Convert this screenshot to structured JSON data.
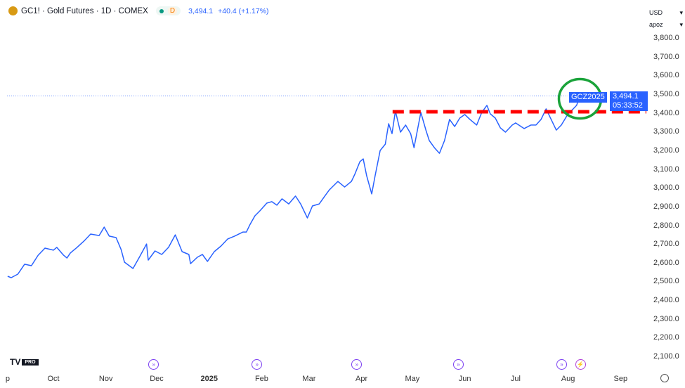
{
  "header": {
    "symbol": "GC1!",
    "title": "GC1! · Gold Futures · 1D · COMEX",
    "status_letter": "D",
    "last": "3,494.1",
    "change": "+40.4 (+1.17%)"
  },
  "currency": "USD",
  "scale_mode": "apoz",
  "price_label": {
    "symbol": "GCZ2025",
    "price": "3,494.1",
    "countdown": "05:33:52"
  },
  "branding": {
    "logo": "TV",
    "badge": "PRO"
  },
  "colors": {
    "line": "#2962ff",
    "annotation_line": "#ff0000",
    "annotation_circle": "#1aa33a"
  },
  "chart_data": {
    "type": "line",
    "title": "GC1! · Gold Futures · 1D · COMEX",
    "x_unit": "days since 2024-10-01",
    "ylim": [
      2100,
      3800
    ],
    "y_ticks": [
      "3,800.0",
      "3,700.0",
      "3,600.0",
      "3,500.0",
      "3,400.0",
      "3,300.0",
      "3,200.0",
      "3,100.0",
      "3,000.0",
      "2,900.0",
      "2,800.0",
      "2,700.0",
      "2,600.0",
      "2,500.0",
      "2,400.0",
      "2,300.0",
      "2,200.0",
      "2,100.0"
    ],
    "y_tick_values": [
      3800,
      3700,
      3600,
      3500,
      3400,
      3300,
      3200,
      3100,
      3000,
      2900,
      2800,
      2700,
      2600,
      2500,
      2400,
      2300,
      2200,
      2100
    ],
    "x_ticks": [
      {
        "label": "p",
        "day": -27
      },
      {
        "label": "Oct",
        "day": 0
      },
      {
        "label": "Nov",
        "day": 31
      },
      {
        "label": "Dec",
        "day": 61
      },
      {
        "label": "2025",
        "day": 92
      },
      {
        "label": "Feb",
        "day": 123
      },
      {
        "label": "Mar",
        "day": 151
      },
      {
        "label": "Apr",
        "day": 182
      },
      {
        "label": "May",
        "day": 212
      },
      {
        "label": "Jun",
        "day": 243
      },
      {
        "label": "Jul",
        "day": 273
      },
      {
        "label": "Aug",
        "day": 304
      },
      {
        "label": "Sep",
        "day": 335
      }
    ],
    "points": [
      [
        -27,
        2532
      ],
      [
        -25,
        2524
      ],
      [
        -21,
        2543
      ],
      [
        -17,
        2596
      ],
      [
        -13,
        2588
      ],
      [
        -9,
        2644
      ],
      [
        -5,
        2682
      ],
      [
        0,
        2671
      ],
      [
        2,
        2686
      ],
      [
        6,
        2644
      ],
      [
        8,
        2629
      ],
      [
        10,
        2656
      ],
      [
        14,
        2686
      ],
      [
        18,
        2719
      ],
      [
        22,
        2757
      ],
      [
        27,
        2749
      ],
      [
        30,
        2794
      ],
      [
        33,
        2746
      ],
      [
        37,
        2738
      ],
      [
        40,
        2674
      ],
      [
        42,
        2607
      ],
      [
        47,
        2573
      ],
      [
        51,
        2637
      ],
      [
        55,
        2704
      ],
      [
        56,
        2618
      ],
      [
        60,
        2667
      ],
      [
        64,
        2648
      ],
      [
        68,
        2686
      ],
      [
        72,
        2753
      ],
      [
        76,
        2663
      ],
      [
        80,
        2648
      ],
      [
        81,
        2599
      ],
      [
        85,
        2633
      ],
      [
        88,
        2648
      ],
      [
        91,
        2611
      ],
      [
        95,
        2663
      ],
      [
        99,
        2693
      ],
      [
        103,
        2731
      ],
      [
        107,
        2746
      ],
      [
        112,
        2768
      ],
      [
        114,
        2768
      ],
      [
        116,
        2806
      ],
      [
        119,
        2854
      ],
      [
        122,
        2881
      ],
      [
        126,
        2922
      ],
      [
        129,
        2930
      ],
      [
        132,
        2911
      ],
      [
        135,
        2945
      ],
      [
        139,
        2918
      ],
      [
        143,
        2960
      ],
      [
        146,
        2918
      ],
      [
        150,
        2843
      ],
      [
        153,
        2907
      ],
      [
        157,
        2918
      ],
      [
        160,
        2956
      ],
      [
        163,
        2993
      ],
      [
        168,
        3038
      ],
      [
        172,
        3008
      ],
      [
        176,
        3038
      ],
      [
        178,
        3076
      ],
      [
        181,
        3143
      ],
      [
        183,
        3158
      ],
      [
        185,
        3068
      ],
      [
        188,
        2971
      ],
      [
        190,
        3068
      ],
      [
        193,
        3203
      ],
      [
        196,
        3237
      ],
      [
        198,
        3346
      ],
      [
        200,
        3293
      ],
      [
        202,
        3414
      ],
      [
        205,
        3301
      ],
      [
        208,
        3339
      ],
      [
        211,
        3293
      ],
      [
        213,
        3218
      ],
      [
        217,
        3406
      ],
      [
        220,
        3312
      ],
      [
        222,
        3256
      ],
      [
        225,
        3218
      ],
      [
        228,
        3188
      ],
      [
        231,
        3256
      ],
      [
        234,
        3369
      ],
      [
        237,
        3331
      ],
      [
        240,
        3376
      ],
      [
        243,
        3395
      ],
      [
        246,
        3369
      ],
      [
        250,
        3339
      ],
      [
        253,
        3406
      ],
      [
        256,
        3444
      ],
      [
        258,
        3399
      ],
      [
        261,
        3376
      ],
      [
        264,
        3324
      ],
      [
        267,
        3301
      ],
      [
        271,
        3339
      ],
      [
        273,
        3350
      ],
      [
        278,
        3320
      ],
      [
        282,
        3339
      ],
      [
        285,
        3339
      ],
      [
        288,
        3369
      ],
      [
        291,
        3425
      ],
      [
        294,
        3369
      ],
      [
        297,
        3312
      ],
      [
        300,
        3339
      ],
      [
        304,
        3399
      ],
      [
        307,
        3425
      ],
      [
        309,
        3444
      ],
      [
        311,
        3494.1
      ]
    ],
    "current_price": 3494.1,
    "annotations": {
      "resistance_level": 3410,
      "resistance_from_day": 202,
      "highlight_day": 311
    },
    "events": [
      {
        "type": "dividend-arrow",
        "day": 59
      },
      {
        "type": "dividend-arrow",
        "day": 120
      },
      {
        "type": "dividend-arrow",
        "day": 179
      },
      {
        "type": "dividend-arrow",
        "day": 239
      },
      {
        "type": "dividend-arrow",
        "day": 300
      },
      {
        "type": "lightning",
        "day": 311
      }
    ]
  }
}
